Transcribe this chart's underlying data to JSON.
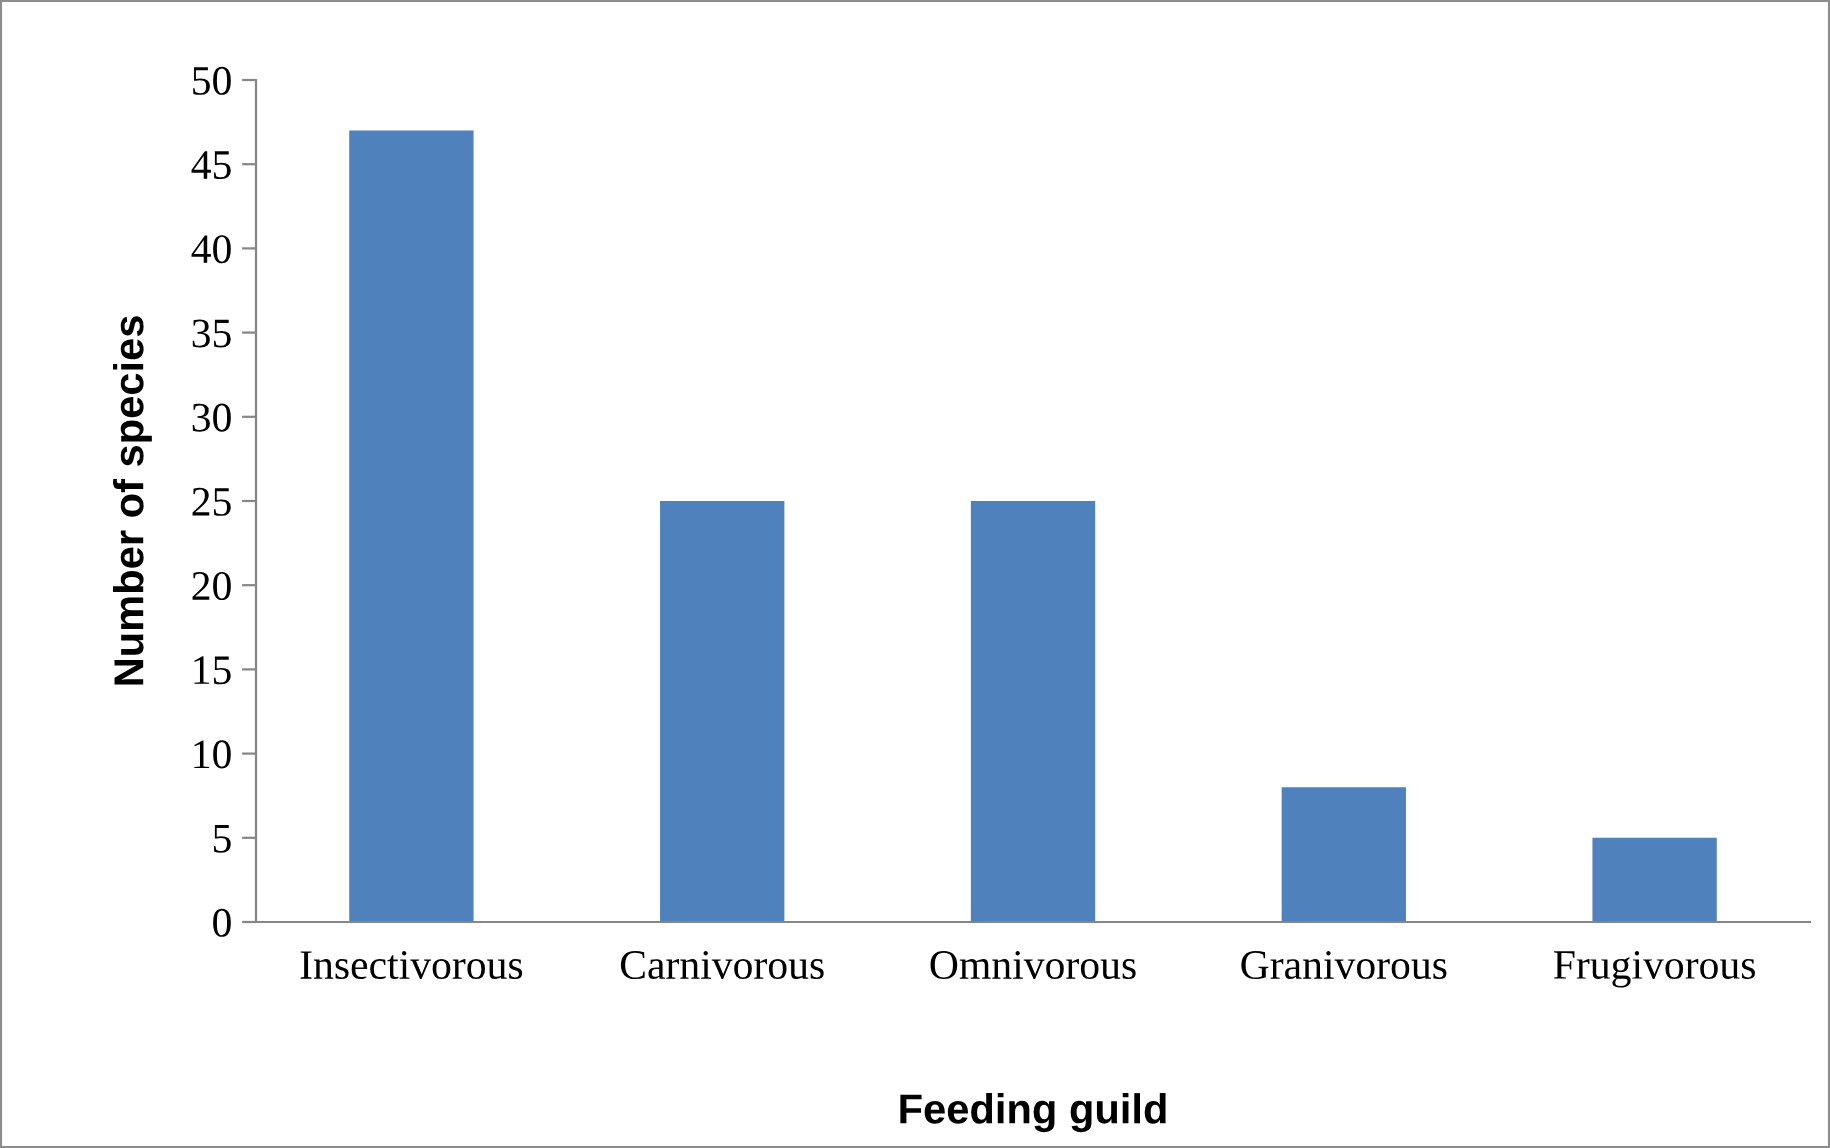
{
  "chart_data": {
    "type": "bar",
    "xlabel": "Feeding guild",
    "ylabel": "Number of species",
    "categories": [
      "Insectivorous",
      "Carnivorous",
      "Omnivorous",
      "Granivorous",
      "Frugivorous"
    ],
    "values": [
      47,
      25,
      25,
      8,
      5
    ],
    "color": "#4f81bd",
    "ylim": [
      0,
      50
    ],
    "yticks": [
      0,
      5,
      10,
      15,
      20,
      25,
      30,
      35,
      40,
      45,
      50
    ],
    "grid": false,
    "legend": false
  }
}
